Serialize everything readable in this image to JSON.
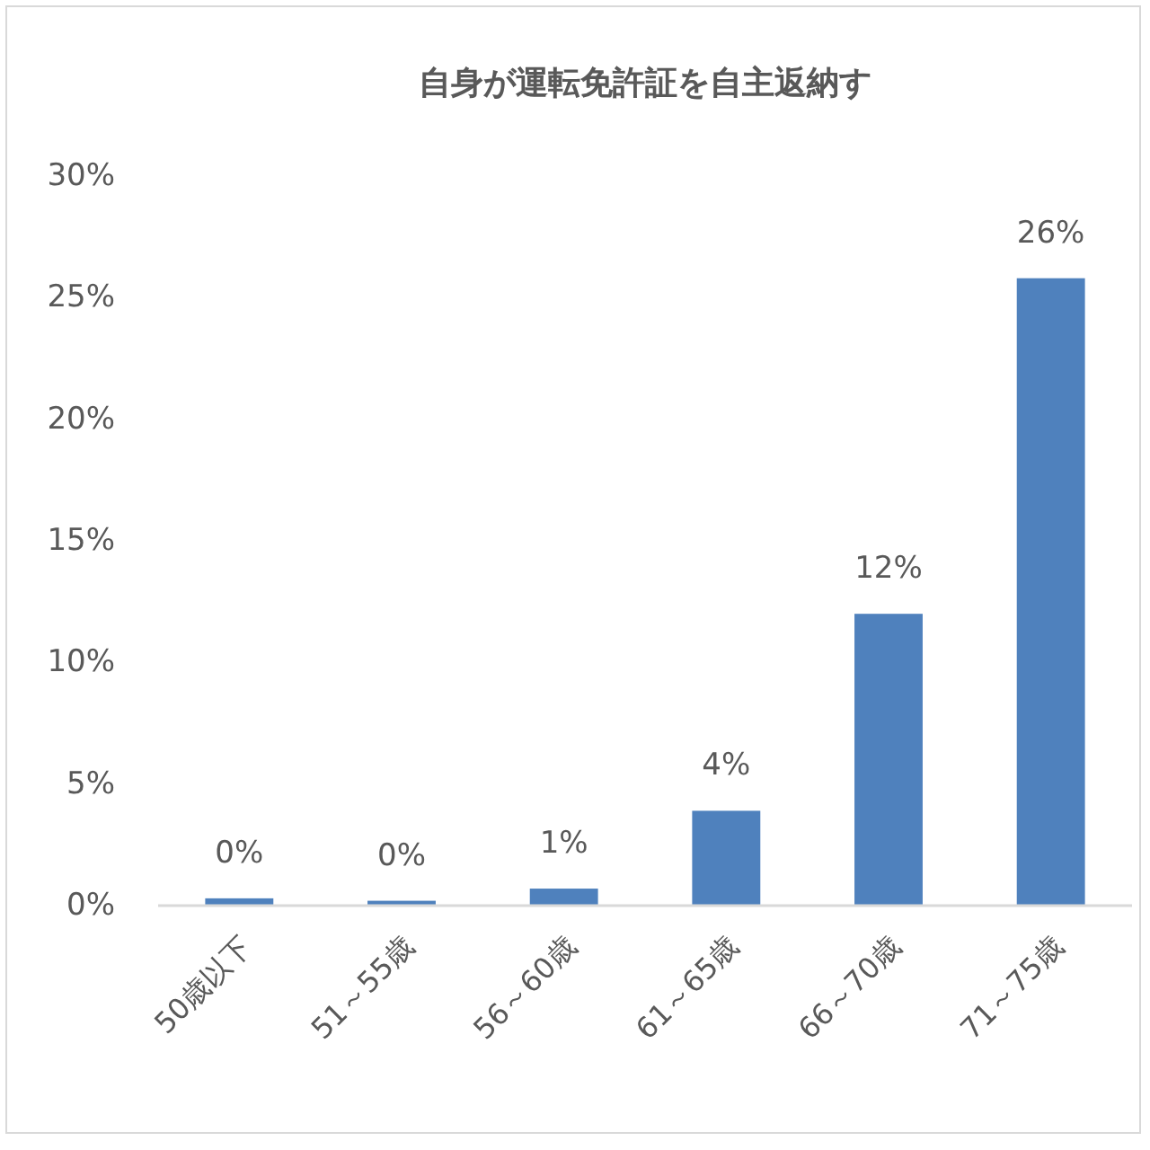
{
  "chart_data": {
    "type": "bar",
    "title": "自身が運転免許証を自主返納す",
    "categories": [
      "50歳以下",
      "51～55歳",
      "56～60歳",
      "61～65歳",
      "66～70歳",
      "71～75歳"
    ],
    "values": [
      0.3,
      0.2,
      0.7,
      3.9,
      12.0,
      25.8
    ],
    "value_labels": [
      "0%",
      "0%",
      "1%",
      "4%",
      "12%",
      "26%"
    ],
    "color": "#4f81bd",
    "ylim": [
      0,
      30
    ],
    "yticks": [
      {
        "value": 0,
        "label": "0%"
      },
      {
        "value": 5,
        "label": "5%"
      },
      {
        "value": 10,
        "label": "10%"
      },
      {
        "value": 15,
        "label": "15%"
      },
      {
        "value": 20,
        "label": "20%"
      },
      {
        "value": 25,
        "label": "25%"
      },
      {
        "value": 30,
        "label": "30%"
      }
    ]
  }
}
